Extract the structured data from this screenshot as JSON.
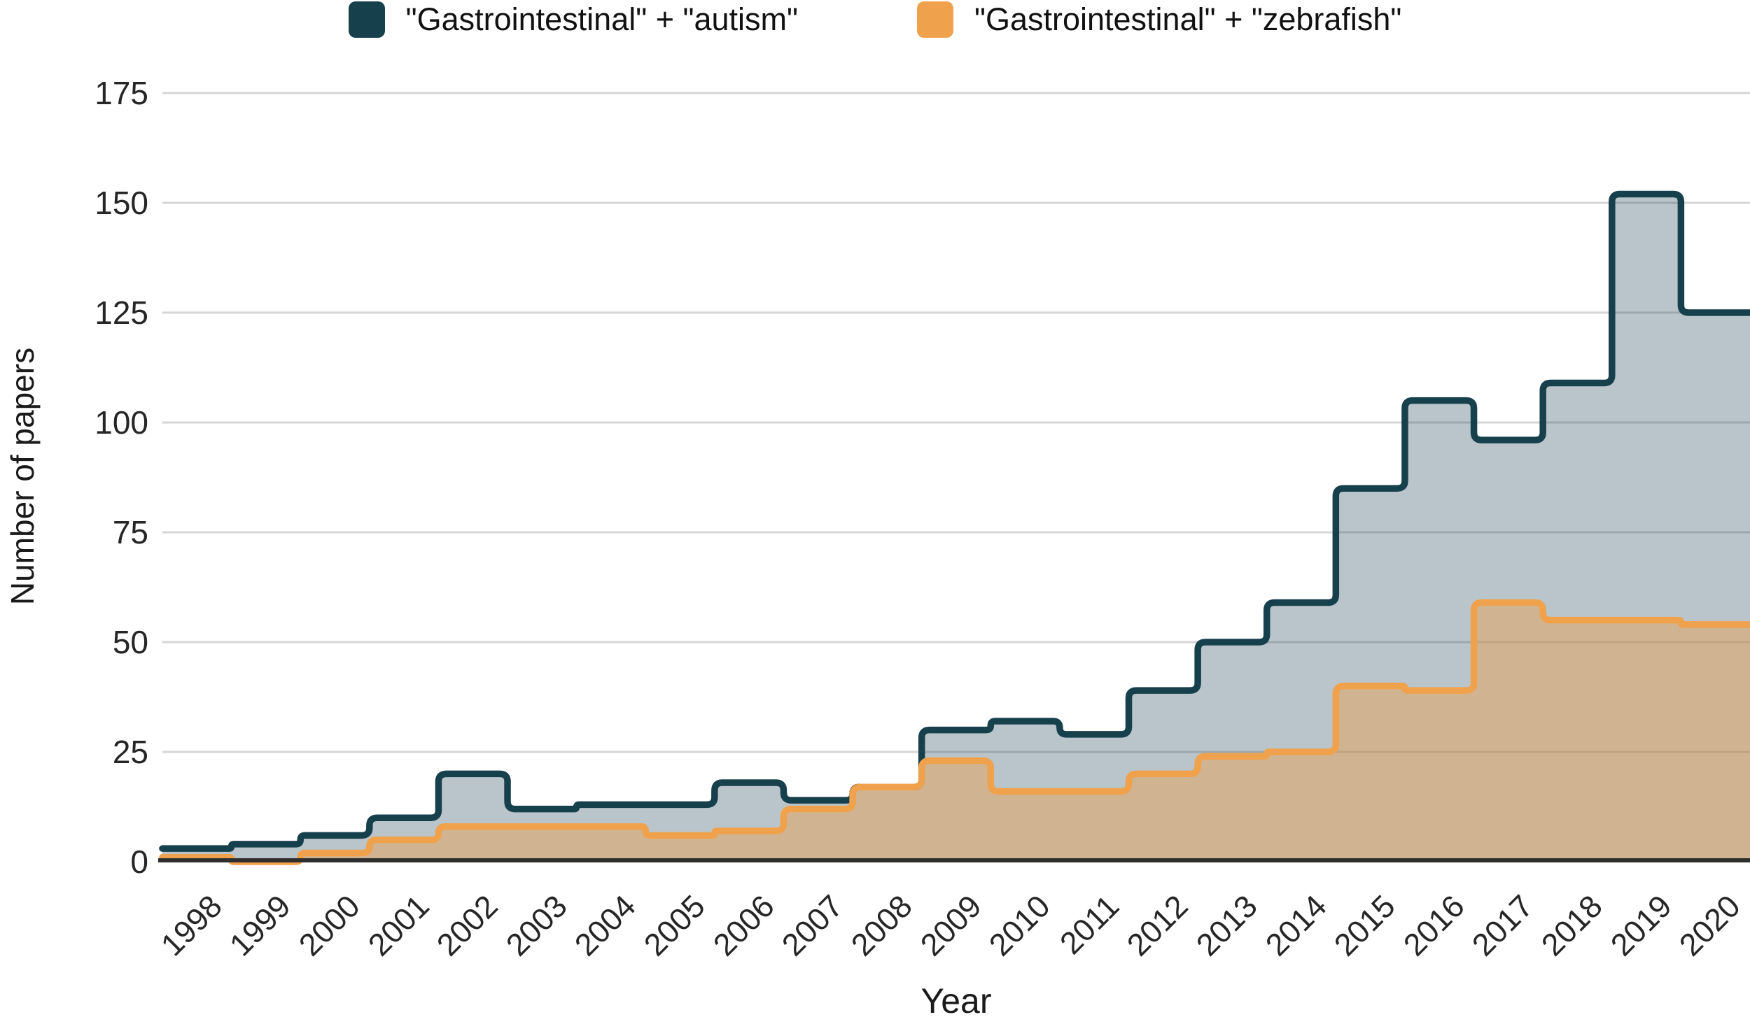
{
  "figure": {
    "background": "#ffffff",
    "text_color": "#262626",
    "gridline_color": "#d6d6d6",
    "axis_line_color": "#2e2e2e"
  },
  "legend": {
    "items": [
      {
        "label": "\"Gastrointestinal\" + \"autism\"",
        "color": "#17404d"
      },
      {
        "label": "\"Gastrointestinal\" + \"zebrafish\"",
        "color": "#f0a14c"
      }
    ]
  },
  "chart_data": {
    "type": "area",
    "variant": "step-area",
    "title": "",
    "xlabel": "Year",
    "ylabel": "Number of papers",
    "x": [
      1998,
      1999,
      2000,
      2001,
      2002,
      2003,
      2004,
      2005,
      2006,
      2007,
      2008,
      2009,
      2010,
      2011,
      2012,
      2013,
      2014,
      2015,
      2016,
      2017,
      2018,
      2019,
      2020
    ],
    "series": [
      {
        "name": "\"Gastrointestinal\" + \"autism\"",
        "stroke": "#17404d",
        "fill": "#16404f",
        "fill_opacity": 0.3,
        "values": [
          3,
          4,
          6,
          10,
          20,
          12,
          13,
          13,
          18,
          14,
          17,
          30,
          32,
          29,
          39,
          50,
          59,
          85,
          105,
          96,
          109,
          152,
          125
        ]
      },
      {
        "name": "\"Gastrointestinal\" + \"zebrafish\"",
        "stroke": "#f0a14c",
        "fill": "#ee9f4c",
        "fill_opacity": 0.45,
        "values": [
          1,
          0,
          2,
          5,
          8,
          8,
          8,
          6,
          7,
          12,
          17,
          23,
          16,
          16,
          20,
          24,
          25,
          40,
          39,
          59,
          55,
          55,
          54
        ]
      }
    ],
    "y_ticks": [
      0,
      25,
      50,
      75,
      100,
      125,
      150,
      175
    ],
    "ylim": [
      0,
      175
    ],
    "grid": "horizontal",
    "legend_position": "top"
  }
}
